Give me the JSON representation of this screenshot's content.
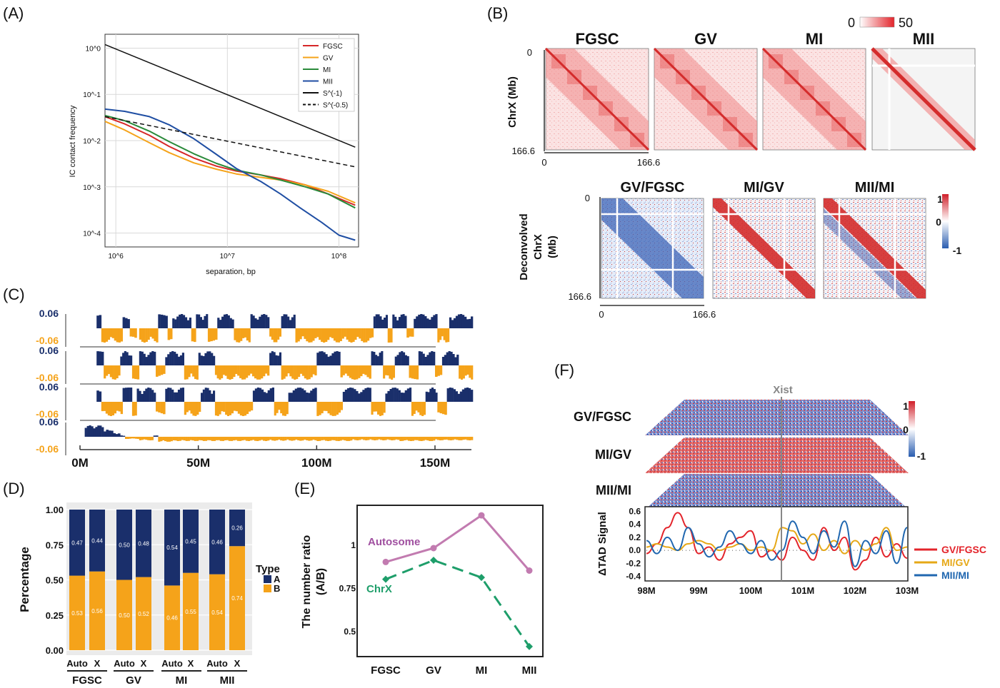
{
  "panel_labels": {
    "a": "(A)",
    "b": "(B)",
    "c": "(C)",
    "d": "(D)",
    "e": "(E)",
    "f": "(F)"
  },
  "chart_data": [
    {
      "id": "A",
      "type": "line",
      "xlabel": "separation, bp",
      "ylabel": "IC contact frequency",
      "x_scale": "log",
      "y_scale": "log",
      "xlim": [
        800000,
        150000000
      ],
      "ylim": [
        5e-05,
        2
      ],
      "x_ticks": [
        "10^6",
        "10^7",
        "10^8"
      ],
      "y_ticks": [
        "10^0",
        "10^-1",
        "10^-2",
        "10^-3",
        "10^-4"
      ],
      "grid": true,
      "legend_position": "top-right",
      "series": [
        {
          "name": "FGSC",
          "color": "#d62728",
          "dash": false,
          "x": [
            800000,
            1200000,
            2000000,
            3000000,
            5000000,
            8000000,
            12000000,
            20000000,
            30000000,
            50000000,
            80000000,
            140000000
          ],
          "y": [
            0.033,
            0.023,
            0.013,
            0.0075,
            0.0042,
            0.0028,
            0.0022,
            0.0018,
            0.0015,
            0.0011,
            0.0007,
            0.0004
          ]
        },
        {
          "name": "GV",
          "color": "#f5a31a",
          "dash": false,
          "x": [
            800000,
            1200000,
            2000000,
            3000000,
            5000000,
            8000000,
            12000000,
            20000000,
            30000000,
            50000000,
            80000000,
            140000000
          ],
          "y": [
            0.026,
            0.017,
            0.009,
            0.0055,
            0.0033,
            0.0024,
            0.0019,
            0.0016,
            0.0014,
            0.0011,
            0.0008,
            0.00045
          ]
        },
        {
          "name": "MI",
          "color": "#2a8a3a",
          "dash": false,
          "x": [
            800000,
            1200000,
            2000000,
            3000000,
            5000000,
            8000000,
            12000000,
            20000000,
            30000000,
            50000000,
            80000000,
            140000000
          ],
          "y": [
            0.035,
            0.027,
            0.016,
            0.0095,
            0.0052,
            0.0032,
            0.0023,
            0.0018,
            0.0014,
            0.001,
            0.0007,
            0.00035
          ]
        },
        {
          "name": "MII",
          "color": "#1f4ea3",
          "dash": false,
          "x": [
            800000,
            1200000,
            2000000,
            3000000,
            5000000,
            8000000,
            12000000,
            20000000,
            30000000,
            45000000,
            70000000,
            100000000,
            140000000
          ],
          "y": [
            0.048,
            0.043,
            0.033,
            0.022,
            0.011,
            0.005,
            0.0025,
            0.0013,
            0.0007,
            0.00035,
            0.00017,
            9e-05,
            7e-05
          ]
        },
        {
          "name": "S^(-1)",
          "color": "#111111",
          "dash": false,
          "x": [
            800000,
            140000000
          ],
          "y": [
            1.2,
            0.0072
          ]
        },
        {
          "name": "S^(-0.5)",
          "color": "#111111",
          "dash": true,
          "x": [
            800000,
            140000000
          ],
          "y": [
            0.033,
            0.0027
          ]
        }
      ]
    },
    {
      "id": "B",
      "type": "heatmap",
      "top_titles": [
        "FGSC",
        "GV",
        "MI",
        "MII"
      ],
      "bottom_titles": [
        "GV/FGSC",
        "MI/GV",
        "MII/MI"
      ],
      "ylabel_top": "ChrX (Mb)",
      "ylabel_bottom": [
        "Deconvolved",
        "ChrX",
        "(Mb)"
      ],
      "axis_start": "0",
      "axis_end": "166.6",
      "top_colorbar": {
        "min": "0",
        "max": "50"
      },
      "bottom_colorbar": {
        "max": "1",
        "mid": "0",
        "min": "-1"
      }
    },
    {
      "id": "C",
      "type": "bar",
      "ytop": "0.06",
      "ybottom": "-0.06",
      "x_ticks": [
        "0M",
        "50M",
        "100M",
        "150M"
      ],
      "xlim": [
        0,
        166
      ],
      "colors": {
        "a": "#1a2f6b",
        "b": "#f5a31a"
      },
      "tracks": [
        [
          [
            7,
            9,
            1
          ],
          [
            9,
            18,
            -1
          ],
          [
            18,
            21,
            1
          ],
          [
            21,
            24,
            -1
          ],
          [
            25,
            33,
            -1
          ],
          [
            33,
            37,
            1
          ],
          [
            37,
            39,
            -1
          ],
          [
            39,
            47,
            1
          ],
          [
            47,
            49,
            -1
          ],
          [
            49,
            54,
            1
          ],
          [
            54,
            58,
            -1
          ],
          [
            58,
            65,
            1
          ],
          [
            65,
            72,
            -1
          ],
          [
            72,
            80,
            1
          ],
          [
            80,
            85,
            -1
          ],
          [
            85,
            91,
            1
          ],
          [
            91,
            108,
            -1
          ],
          [
            108,
            124,
            -1
          ],
          [
            124,
            130,
            1
          ],
          [
            130,
            132,
            -1
          ],
          [
            132,
            138,
            1
          ],
          [
            138,
            141,
            -1
          ],
          [
            141,
            151,
            1
          ],
          [
            151,
            156,
            -1
          ],
          [
            156,
            166,
            1
          ]
        ],
        [
          [
            7,
            10,
            1
          ],
          [
            10,
            17,
            -1
          ],
          [
            17,
            22,
            1
          ],
          [
            22,
            25,
            -1
          ],
          [
            25,
            32,
            1
          ],
          [
            32,
            36,
            -1
          ],
          [
            36,
            44,
            1
          ],
          [
            44,
            50,
            -1
          ],
          [
            50,
            57,
            1
          ],
          [
            57,
            62,
            -1
          ],
          [
            62,
            70,
            -1
          ],
          [
            70,
            80,
            -1
          ],
          [
            80,
            85,
            1
          ],
          [
            85,
            100,
            -1
          ],
          [
            100,
            110,
            1
          ],
          [
            110,
            123,
            -1
          ],
          [
            123,
            128,
            1
          ],
          [
            128,
            133,
            -1
          ],
          [
            133,
            139,
            1
          ],
          [
            139,
            143,
            -1
          ],
          [
            143,
            150,
            1
          ],
          [
            150,
            153,
            -1
          ],
          [
            153,
            160,
            1
          ],
          [
            160,
            166,
            -1
          ]
        ],
        [
          [
            7,
            9,
            1
          ],
          [
            9,
            18,
            -1
          ],
          [
            18,
            22,
            1
          ],
          [
            22,
            24,
            -1
          ],
          [
            24,
            32,
            1
          ],
          [
            32,
            36,
            -1
          ],
          [
            36,
            44,
            1
          ],
          [
            44,
            51,
            -1
          ],
          [
            51,
            57,
            1
          ],
          [
            57,
            63,
            -1
          ],
          [
            63,
            73,
            -1
          ],
          [
            73,
            82,
            1
          ],
          [
            82,
            88,
            -1
          ],
          [
            88,
            100,
            1
          ],
          [
            100,
            111,
            -1
          ],
          [
            111,
            123,
            1
          ],
          [
            123,
            129,
            -1
          ],
          [
            129,
            140,
            1
          ],
          [
            140,
            146,
            -1
          ],
          [
            146,
            151,
            1
          ],
          [
            151,
            155,
            -1
          ],
          [
            155,
            166,
            1
          ]
        ],
        [
          [
            2,
            10,
            0.8
          ],
          [
            10,
            14,
            0.5
          ],
          [
            14,
            17,
            0.25
          ],
          [
            17,
            19,
            0.1
          ],
          [
            19,
            25,
            -0.15
          ],
          [
            25,
            31,
            -0.25
          ],
          [
            31,
            33,
            0.1
          ],
          [
            33,
            40,
            -0.35
          ],
          [
            40,
            60,
            -0.3
          ],
          [
            60,
            80,
            -0.3
          ],
          [
            80,
            100,
            -0.28
          ],
          [
            100,
            115,
            -0.3
          ],
          [
            115,
            135,
            -0.25
          ],
          [
            135,
            150,
            -0.3
          ],
          [
            150,
            166,
            -0.25
          ]
        ]
      ]
    },
    {
      "id": "D",
      "type": "bar",
      "ylabel": "Percentage",
      "y_ticks": [
        "0.00",
        "0.25",
        "0.50",
        "0.75",
        "1.00"
      ],
      "ylim": [
        0,
        1
      ],
      "legend_title": "Type",
      "legend": [
        {
          "label": "A",
          "color": "#1a2f6b"
        },
        {
          "label": "B",
          "color": "#f5a31a"
        }
      ],
      "bar_labels": [
        "Auto",
        "X",
        "Auto",
        "X",
        "Auto",
        "X",
        "Auto",
        "X"
      ],
      "groups": [
        "FGSC",
        "GV",
        "MI",
        "MII"
      ],
      "series": [
        {
          "name": "B",
          "values": [
            0.53,
            0.56,
            0.5,
            0.52,
            0.46,
            0.55,
            0.54,
            0.74
          ],
          "labels": [
            "0.53",
            "0.56",
            "0.50",
            "0.52",
            "0.46",
            "0.55",
            "0.54",
            "0.74"
          ]
        },
        {
          "name": "A",
          "values": [
            0.47,
            0.44,
            0.5,
            0.48,
            0.54,
            0.45,
            0.46,
            0.26
          ],
          "labels": [
            "0.47",
            "0.44",
            "0.50",
            "0.48",
            "0.54",
            "0.45",
            "0.46",
            "0.26"
          ]
        }
      ]
    },
    {
      "id": "E",
      "type": "line",
      "ylabel": "The number ratio (A/B)",
      "ylabel_lines": [
        "The number ratio",
        "(A/B)"
      ],
      "categories": [
        "FGSC",
        "GV",
        "MI",
        "MII"
      ],
      "y_ticks": [
        "0.5",
        "0.75",
        "1"
      ],
      "ylim": [
        0.36,
        1.22
      ],
      "series": [
        {
          "name": "Autosome",
          "color": "#c27bb0",
          "dash": false,
          "values": [
            0.9,
            0.98,
            1.17,
            0.85
          ]
        },
        {
          "name": "ChrX",
          "color": "#1e9e6a",
          "dash": true,
          "values": [
            0.8,
            0.91,
            0.81,
            0.41
          ]
        }
      ]
    },
    {
      "id": "F",
      "type": "line",
      "row_labels": [
        "GV/FGSC",
        "MI/GV",
        "MII/MI"
      ],
      "marker_label": "Xist",
      "marker_x": 100.6,
      "ylabel": "ΔTAD Signal",
      "y_ticks": [
        "0.6",
        "0.4",
        "0.2",
        "0.0",
        "-0.2",
        "-0.4"
      ],
      "ylim": [
        -0.45,
        0.65
      ],
      "x_ticks": [
        "98M",
        "99M",
        "100M",
        "101M",
        "102M",
        "103M"
      ],
      "xlim": [
        98,
        103
      ],
      "colorbar": {
        "max": "1",
        "mid": "0",
        "min": "-1"
      },
      "series": [
        {
          "name": "GV/FGSC",
          "color": "#e3242b",
          "x": [
            98,
            98.2,
            98.4,
            98.6,
            98.8,
            99,
            99.2,
            99.4,
            99.6,
            99.8,
            100,
            100.2,
            100.4,
            100.6,
            100.8,
            101,
            101.2,
            101.4,
            101.6,
            101.8,
            102,
            102.2,
            102.4,
            102.6,
            102.8,
            103
          ],
          "y": [
            -0.05,
            0.1,
            0.35,
            0.58,
            0.35,
            -0.05,
            0.05,
            -0.15,
            0.1,
            0.2,
            0.3,
            -0.1,
            0.0,
            -0.15,
            0.2,
            0.0,
            -0.15,
            0.35,
            0.0,
            0.2,
            -0.3,
            -0.15,
            0.2,
            -0.1,
            0.1,
            -0.12
          ]
        },
        {
          "name": "MI/GV",
          "color": "#e6a817",
          "x": [
            98,
            98.2,
            98.4,
            98.6,
            98.8,
            99,
            99.2,
            99.4,
            99.6,
            99.8,
            100,
            100.2,
            100.4,
            100.6,
            100.8,
            101,
            101.2,
            101.4,
            101.6,
            101.8,
            102,
            102.2,
            102.4,
            102.6,
            102.8,
            103
          ],
          "y": [
            0.05,
            0.1,
            0.05,
            0.0,
            0.1,
            0.15,
            0.1,
            0.0,
            0.05,
            0.1,
            0.0,
            0.05,
            0.0,
            0.35,
            0.3,
            0.1,
            0.25,
            0.0,
            0.15,
            -0.05,
            0.15,
            0.0,
            0.1,
            0.35,
            0.0,
            0.05
          ]
        },
        {
          "name": "MII/MI",
          "color": "#2067b0",
          "x": [
            98,
            98.2,
            98.4,
            98.6,
            98.8,
            99,
            99.2,
            99.4,
            99.6,
            99.8,
            100,
            100.2,
            100.4,
            100.6,
            100.8,
            101,
            101.2,
            101.4,
            101.6,
            101.8,
            102,
            102.2,
            102.4,
            102.6,
            102.8,
            103
          ],
          "y": [
            0.15,
            -0.05,
            0.2,
            0.0,
            0.35,
            0.1,
            -0.1,
            0.05,
            0.3,
            0.1,
            -0.05,
            0.15,
            -0.15,
            0.0,
            0.45,
            0.2,
            -0.05,
            0.3,
            0.05,
            0.45,
            -0.25,
            0.15,
            -0.05,
            0.3,
            -0.2,
            0.35
          ]
        }
      ]
    }
  ]
}
